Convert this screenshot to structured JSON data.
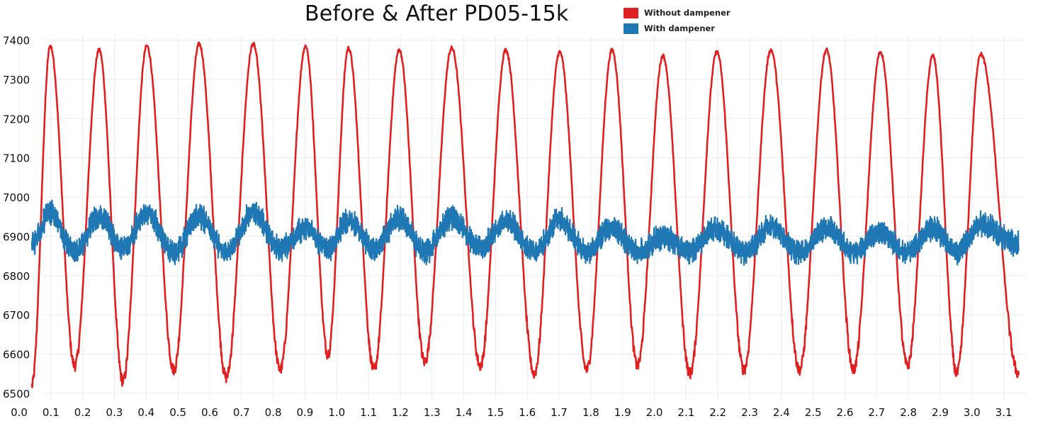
{
  "chart_data": {
    "type": "line",
    "title": "Before & After PD05-15k",
    "xlabel": "",
    "ylabel": "",
    "xlim": [
      0.0,
      3.17
    ],
    "ylim": [
      6480,
      7410
    ],
    "x_ticks": [
      "0.0",
      "0.1",
      "0.2",
      "0.3",
      "0.4",
      "0.5",
      "0.6",
      "0.7",
      "0.8",
      "0.9",
      "1.0",
      "1.1",
      "1.2",
      "1.3",
      "1.4",
      "1.5",
      "1.6",
      "1.7",
      "1.8",
      "1.9",
      "2.0",
      "2.1",
      "2.2",
      "2.3",
      "2.4",
      "2.5",
      "2.6",
      "2.7",
      "2.8",
      "2.9",
      "3.0",
      "3.1"
    ],
    "y_ticks": [
      "6500",
      "6600",
      "6700",
      "6800",
      "6900",
      "7000",
      "7100",
      "7200",
      "7300",
      "7400"
    ],
    "grid": "on",
    "legend_position": "top-right",
    "series": [
      {
        "name": "Without dampener",
        "color": "#e02020",
        "peaks": [
          [
            0.098,
            7385
          ],
          [
            0.252,
            7375
          ],
          [
            0.402,
            7385
          ],
          [
            0.567,
            7390
          ],
          [
            0.737,
            7390
          ],
          [
            0.902,
            7385
          ],
          [
            1.037,
            7380
          ],
          [
            1.197,
            7375
          ],
          [
            1.362,
            7380
          ],
          [
            1.532,
            7375
          ],
          [
            1.702,
            7370
          ],
          [
            1.867,
            7375
          ],
          [
            2.027,
            7360
          ],
          [
            2.197,
            7370
          ],
          [
            2.367,
            7375
          ],
          [
            2.542,
            7375
          ],
          [
            2.712,
            7370
          ],
          [
            2.877,
            7360
          ],
          [
            3.027,
            7365
          ]
        ],
        "troughs": [
          [
            0.04,
            6520
          ],
          [
            0.175,
            6570
          ],
          [
            0.327,
            6530
          ],
          [
            0.487,
            6560
          ],
          [
            0.652,
            6540
          ],
          [
            0.822,
            6560
          ],
          [
            0.972,
            6600
          ],
          [
            1.117,
            6560
          ],
          [
            1.277,
            6580
          ],
          [
            1.452,
            6570
          ],
          [
            1.622,
            6550
          ],
          [
            1.787,
            6560
          ],
          [
            1.947,
            6570
          ],
          [
            2.112,
            6550
          ],
          [
            2.282,
            6560
          ],
          [
            2.457,
            6560
          ],
          [
            2.627,
            6560
          ],
          [
            2.797,
            6570
          ],
          [
            2.952,
            6550
          ],
          [
            3.147,
            6550
          ]
        ]
      },
      {
        "name": "With dampener",
        "color": "#1f77b4",
        "center": 6885,
        "noise_band": 50,
        "peaks": [
          [
            0.04,
            6880
          ],
          [
            0.098,
            6960
          ],
          [
            0.252,
            6950
          ],
          [
            0.402,
            6960
          ],
          [
            0.567,
            6950
          ],
          [
            0.737,
            6960
          ],
          [
            0.902,
            6920
          ],
          [
            1.037,
            6940
          ],
          [
            1.197,
            6945
          ],
          [
            1.362,
            6945
          ],
          [
            1.532,
            6940
          ],
          [
            1.702,
            6940
          ],
          [
            1.867,
            6920
          ],
          [
            2.027,
            6900
          ],
          [
            2.197,
            6920
          ],
          [
            2.367,
            6925
          ],
          [
            2.542,
            6920
          ],
          [
            2.712,
            6910
          ],
          [
            2.877,
            6920
          ],
          [
            3.027,
            6930
          ],
          [
            3.147,
            6880
          ]
        ],
        "troughs": [
          [
            0.175,
            6860
          ],
          [
            0.327,
            6870
          ],
          [
            0.487,
            6860
          ],
          [
            0.652,
            6860
          ],
          [
            0.822,
            6870
          ],
          [
            0.972,
            6870
          ],
          [
            1.117,
            6870
          ],
          [
            1.277,
            6860
          ],
          [
            1.452,
            6870
          ],
          [
            1.622,
            6860
          ],
          [
            1.787,
            6860
          ],
          [
            1.947,
            6860
          ],
          [
            2.112,
            6860
          ],
          [
            2.282,
            6860
          ],
          [
            2.457,
            6860
          ],
          [
            2.627,
            6860
          ],
          [
            2.797,
            6860
          ],
          [
            2.952,
            6860
          ]
        ]
      }
    ]
  }
}
